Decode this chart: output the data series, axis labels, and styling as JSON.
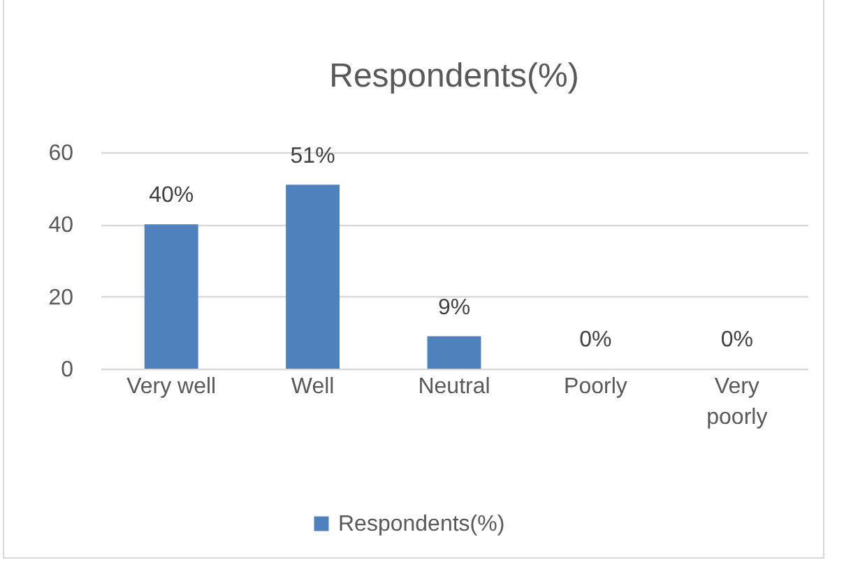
{
  "chart_data": {
    "type": "bar",
    "title": "Respondents(%)",
    "categories": [
      "Very well",
      "Well",
      "Neutral",
      "Poorly",
      "Very poorly"
    ],
    "series": [
      {
        "name": "Respondents(%)",
        "color": "#4f81bd",
        "values": [
          40,
          51,
          9,
          0,
          0
        ],
        "value_labels": [
          "40%",
          "51%",
          "9%",
          "0%",
          "0%"
        ]
      }
    ],
    "ylim": [
      0,
      60
    ],
    "yticks": [
      0,
      20,
      40,
      60
    ],
    "grid": "y",
    "legend": "bottom"
  }
}
